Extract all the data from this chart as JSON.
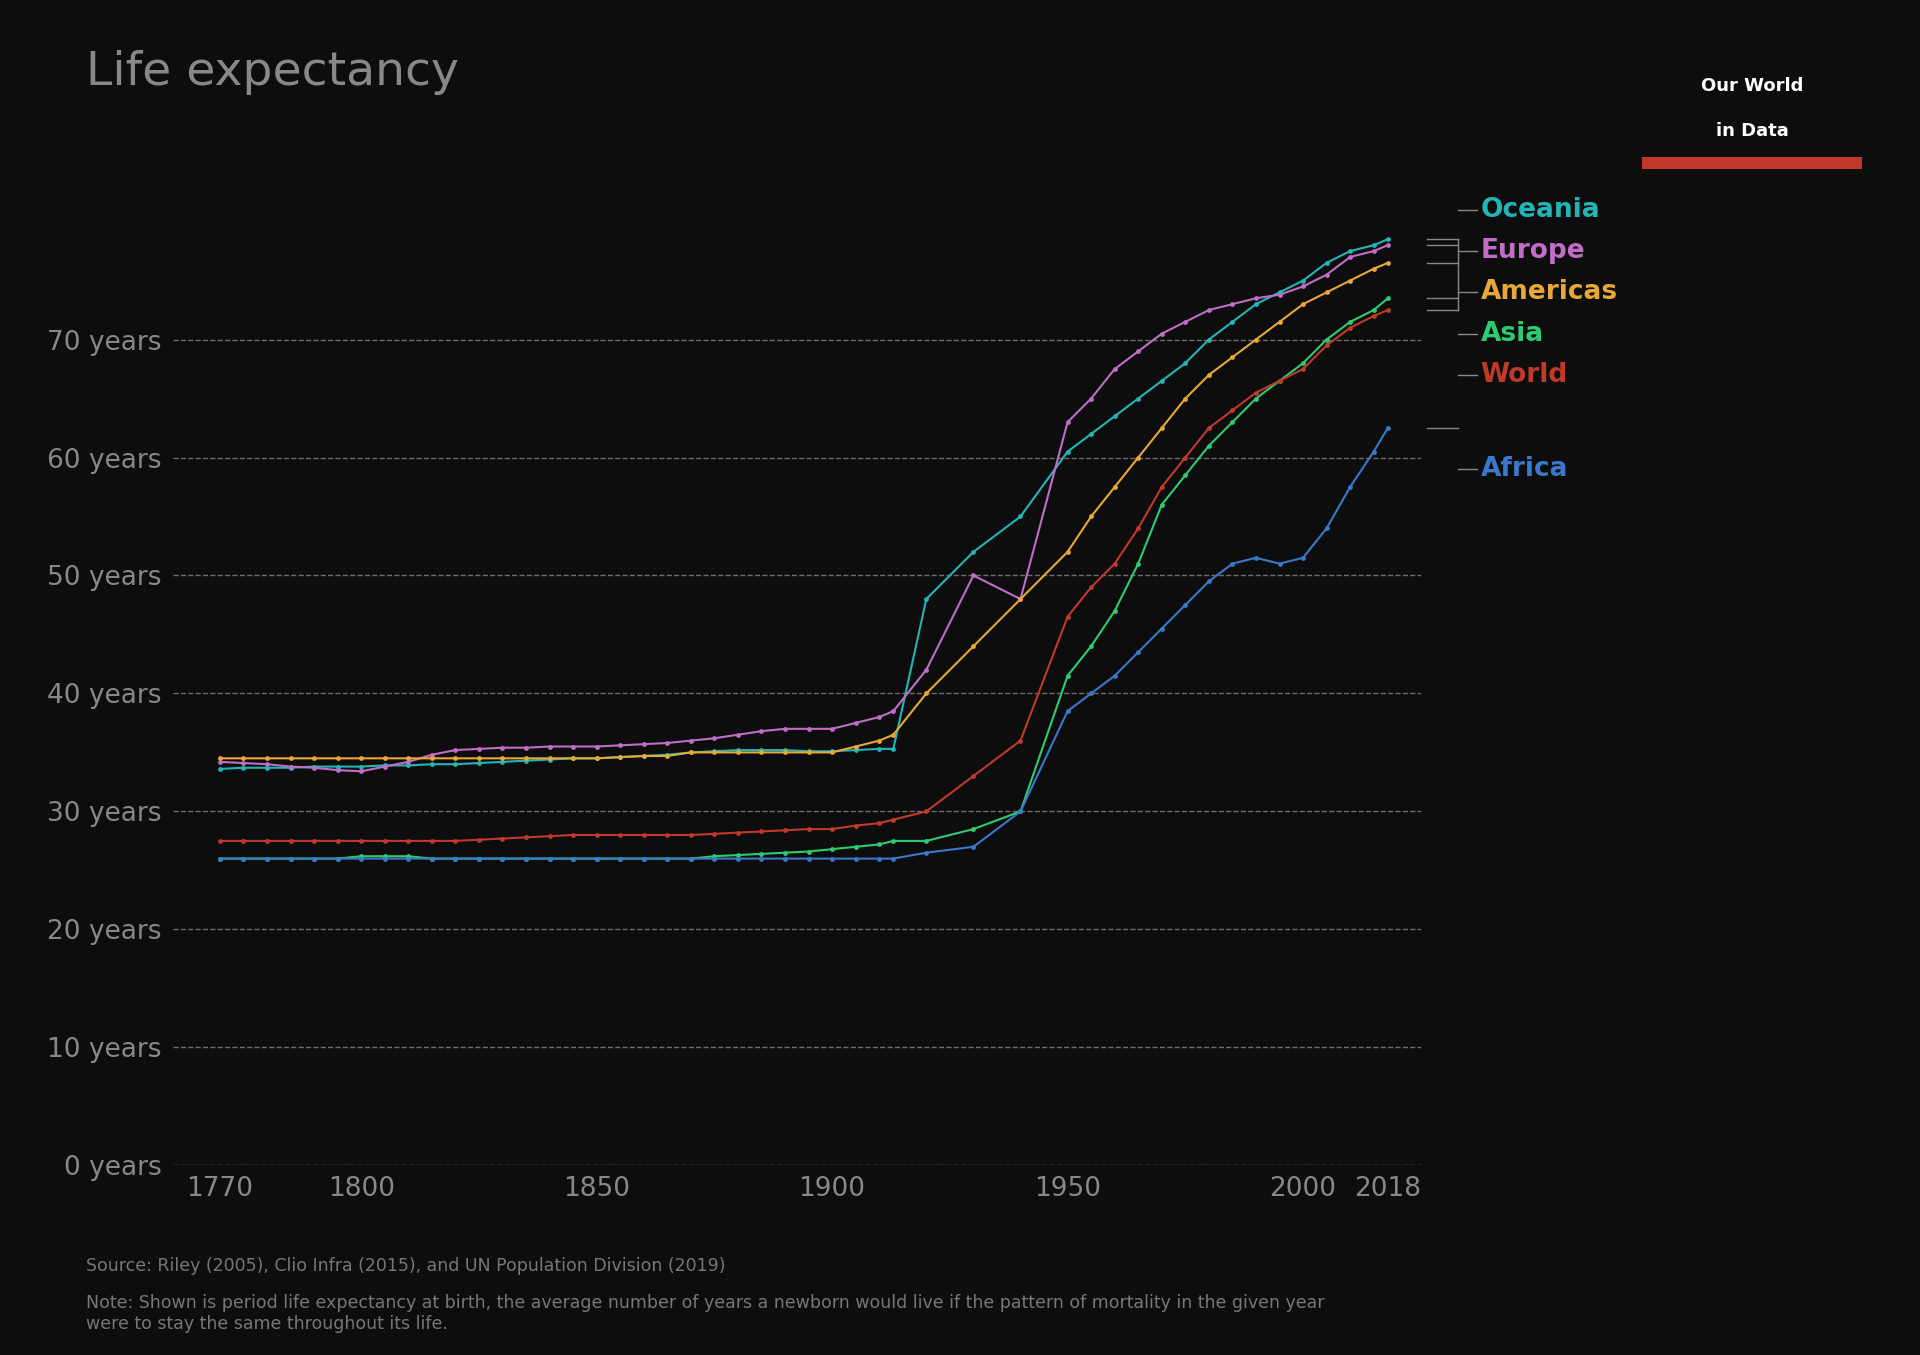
{
  "title": "Life expectancy",
  "background_color": "#0d0d0d",
  "text_color": "#888888",
  "title_color": "#888888",
  "grid_color": "#555555",
  "xlim": [
    1760,
    2025
  ],
  "ylim": [
    0,
    85
  ],
  "yticks": [
    0,
    10,
    20,
    30,
    40,
    50,
    60,
    70
  ],
  "ytick_labels": [
    "0 years",
    "10 years",
    "20 years",
    "30 years",
    "40 years",
    "50 years",
    "60 years",
    "70 years"
  ],
  "xticks": [
    1770,
    1800,
    1850,
    1900,
    1950,
    2000,
    2018
  ],
  "series": {
    "Oceania": {
      "color": "#23b5b5",
      "data": [
        [
          1770,
          33.6
        ],
        [
          1775,
          33.7
        ],
        [
          1780,
          33.7
        ],
        [
          1785,
          33.7
        ],
        [
          1790,
          33.8
        ],
        [
          1795,
          33.8
        ],
        [
          1800,
          33.8
        ],
        [
          1805,
          33.9
        ],
        [
          1810,
          33.9
        ],
        [
          1815,
          34.0
        ],
        [
          1820,
          34.0
        ],
        [
          1825,
          34.1
        ],
        [
          1830,
          34.2
        ],
        [
          1835,
          34.3
        ],
        [
          1840,
          34.4
        ],
        [
          1845,
          34.5
        ],
        [
          1850,
          34.5
        ],
        [
          1855,
          34.6
        ],
        [
          1860,
          34.7
        ],
        [
          1865,
          34.8
        ],
        [
          1870,
          35.0
        ],
        [
          1875,
          35.1
        ],
        [
          1880,
          35.2
        ],
        [
          1885,
          35.2
        ],
        [
          1890,
          35.2
        ],
        [
          1895,
          35.1
        ],
        [
          1900,
          35.1
        ],
        [
          1905,
          35.2
        ],
        [
          1910,
          35.3
        ],
        [
          1913,
          35.3
        ],
        [
          1920,
          48.0
        ],
        [
          1930,
          52.0
        ],
        [
          1940,
          55.0
        ],
        [
          1950,
          60.5
        ],
        [
          1955,
          62.0
        ],
        [
          1960,
          63.5
        ],
        [
          1965,
          65.0
        ],
        [
          1970,
          66.5
        ],
        [
          1975,
          68.0
        ],
        [
          1980,
          70.0
        ],
        [
          1985,
          71.5
        ],
        [
          1990,
          73.0
        ],
        [
          1995,
          74.0
        ],
        [
          2000,
          75.0
        ],
        [
          2005,
          76.5
        ],
        [
          2010,
          77.5
        ],
        [
          2015,
          78.0
        ],
        [
          2018,
          78.5
        ]
      ]
    },
    "Europe": {
      "color": "#c06dc8",
      "data": [
        [
          1770,
          34.2
        ],
        [
          1775,
          34.1
        ],
        [
          1780,
          34.0
        ],
        [
          1785,
          33.8
        ],
        [
          1790,
          33.7
        ],
        [
          1795,
          33.5
        ],
        [
          1800,
          33.4
        ],
        [
          1805,
          33.8
        ],
        [
          1810,
          34.2
        ],
        [
          1815,
          34.8
        ],
        [
          1820,
          35.2
        ],
        [
          1825,
          35.3
        ],
        [
          1830,
          35.4
        ],
        [
          1835,
          35.4
        ],
        [
          1840,
          35.5
        ],
        [
          1845,
          35.5
        ],
        [
          1850,
          35.5
        ],
        [
          1855,
          35.6
        ],
        [
          1860,
          35.7
        ],
        [
          1865,
          35.8
        ],
        [
          1870,
          36.0
        ],
        [
          1875,
          36.2
        ],
        [
          1880,
          36.5
        ],
        [
          1885,
          36.8
        ],
        [
          1890,
          37.0
        ],
        [
          1895,
          37.0
        ],
        [
          1900,
          37.0
        ],
        [
          1905,
          37.5
        ],
        [
          1910,
          38.0
        ],
        [
          1913,
          38.5
        ],
        [
          1920,
          42.0
        ],
        [
          1930,
          50.0
        ],
        [
          1940,
          48.0
        ],
        [
          1950,
          63.0
        ],
        [
          1955,
          65.0
        ],
        [
          1960,
          67.5
        ],
        [
          1965,
          69.0
        ],
        [
          1970,
          70.5
        ],
        [
          1975,
          71.5
        ],
        [
          1980,
          72.5
        ],
        [
          1985,
          73.0
        ],
        [
          1990,
          73.5
        ],
        [
          1995,
          73.8
        ],
        [
          2000,
          74.5
        ],
        [
          2005,
          75.5
        ],
        [
          2010,
          77.0
        ],
        [
          2015,
          77.5
        ],
        [
          2018,
          78.0
        ]
      ]
    },
    "Americas": {
      "color": "#e8a838",
      "data": [
        [
          1770,
          34.5
        ],
        [
          1775,
          34.5
        ],
        [
          1780,
          34.5
        ],
        [
          1785,
          34.5
        ],
        [
          1790,
          34.5
        ],
        [
          1795,
          34.5
        ],
        [
          1800,
          34.5
        ],
        [
          1805,
          34.5
        ],
        [
          1810,
          34.5
        ],
        [
          1815,
          34.5
        ],
        [
          1820,
          34.5
        ],
        [
          1825,
          34.5
        ],
        [
          1830,
          34.5
        ],
        [
          1835,
          34.5
        ],
        [
          1840,
          34.5
        ],
        [
          1845,
          34.5
        ],
        [
          1850,
          34.5
        ],
        [
          1855,
          34.6
        ],
        [
          1860,
          34.7
        ],
        [
          1865,
          34.7
        ],
        [
          1870,
          35.0
        ],
        [
          1875,
          35.0
        ],
        [
          1880,
          35.0
        ],
        [
          1885,
          35.0
        ],
        [
          1890,
          35.0
        ],
        [
          1895,
          35.0
        ],
        [
          1900,
          35.0
        ],
        [
          1905,
          35.5
        ],
        [
          1910,
          36.0
        ],
        [
          1913,
          36.5
        ],
        [
          1920,
          40.0
        ],
        [
          1930,
          44.0
        ],
        [
          1940,
          48.0
        ],
        [
          1950,
          52.0
        ],
        [
          1955,
          55.0
        ],
        [
          1960,
          57.5
        ],
        [
          1965,
          60.0
        ],
        [
          1970,
          62.5
        ],
        [
          1975,
          65.0
        ],
        [
          1980,
          67.0
        ],
        [
          1985,
          68.5
        ],
        [
          1990,
          70.0
        ],
        [
          1995,
          71.5
        ],
        [
          2000,
          73.0
        ],
        [
          2005,
          74.0
        ],
        [
          2010,
          75.0
        ],
        [
          2015,
          76.0
        ],
        [
          2018,
          76.5
        ]
      ]
    },
    "Asia": {
      "color": "#2ecc71",
      "data": [
        [
          1770,
          26.0
        ],
        [
          1775,
          26.0
        ],
        [
          1780,
          26.0
        ],
        [
          1785,
          26.0
        ],
        [
          1790,
          26.0
        ],
        [
          1795,
          26.0
        ],
        [
          1800,
          26.2
        ],
        [
          1805,
          26.2
        ],
        [
          1810,
          26.2
        ],
        [
          1815,
          26.0
        ],
        [
          1820,
          26.0
        ],
        [
          1825,
          26.0
        ],
        [
          1830,
          26.0
        ],
        [
          1835,
          26.0
        ],
        [
          1840,
          26.0
        ],
        [
          1845,
          26.0
        ],
        [
          1850,
          26.0
        ],
        [
          1855,
          26.0
        ],
        [
          1860,
          26.0
        ],
        [
          1865,
          26.0
        ],
        [
          1870,
          26.0
        ],
        [
          1875,
          26.2
        ],
        [
          1880,
          26.3
        ],
        [
          1885,
          26.4
        ],
        [
          1890,
          26.5
        ],
        [
          1895,
          26.6
        ],
        [
          1900,
          26.8
        ],
        [
          1905,
          27.0
        ],
        [
          1910,
          27.2
        ],
        [
          1913,
          27.5
        ],
        [
          1920,
          27.5
        ],
        [
          1930,
          28.5
        ],
        [
          1940,
          30.0
        ],
        [
          1950,
          41.5
        ],
        [
          1955,
          44.0
        ],
        [
          1960,
          47.0
        ],
        [
          1965,
          51.0
        ],
        [
          1970,
          56.0
        ],
        [
          1975,
          58.5
        ],
        [
          1980,
          61.0
        ],
        [
          1985,
          63.0
        ],
        [
          1990,
          65.0
        ],
        [
          1995,
          66.5
        ],
        [
          2000,
          68.0
        ],
        [
          2005,
          70.0
        ],
        [
          2010,
          71.5
        ],
        [
          2015,
          72.5
        ],
        [
          2018,
          73.5
        ]
      ]
    },
    "World": {
      "color": "#c0392b",
      "data": [
        [
          1770,
          27.5
        ],
        [
          1775,
          27.5
        ],
        [
          1780,
          27.5
        ],
        [
          1785,
          27.5
        ],
        [
          1790,
          27.5
        ],
        [
          1795,
          27.5
        ],
        [
          1800,
          27.5
        ],
        [
          1805,
          27.5
        ],
        [
          1810,
          27.5
        ],
        [
          1815,
          27.5
        ],
        [
          1820,
          27.5
        ],
        [
          1825,
          27.6
        ],
        [
          1830,
          27.7
        ],
        [
          1835,
          27.8
        ],
        [
          1840,
          27.9
        ],
        [
          1845,
          28.0
        ],
        [
          1850,
          28.0
        ],
        [
          1855,
          28.0
        ],
        [
          1860,
          28.0
        ],
        [
          1865,
          28.0
        ],
        [
          1870,
          28.0
        ],
        [
          1875,
          28.1
        ],
        [
          1880,
          28.2
        ],
        [
          1885,
          28.3
        ],
        [
          1890,
          28.4
        ],
        [
          1895,
          28.5
        ],
        [
          1900,
          28.5
        ],
        [
          1905,
          28.8
        ],
        [
          1910,
          29.0
        ],
        [
          1913,
          29.3
        ],
        [
          1920,
          30.0
        ],
        [
          1930,
          33.0
        ],
        [
          1940,
          36.0
        ],
        [
          1950,
          46.5
        ],
        [
          1955,
          49.0
        ],
        [
          1960,
          51.0
        ],
        [
          1965,
          54.0
        ],
        [
          1970,
          57.5
        ],
        [
          1975,
          60.0
        ],
        [
          1980,
          62.5
        ],
        [
          1985,
          64.0
        ],
        [
          1990,
          65.5
        ],
        [
          1995,
          66.5
        ],
        [
          2000,
          67.5
        ],
        [
          2005,
          69.5
        ],
        [
          2010,
          71.0
        ],
        [
          2015,
          72.0
        ],
        [
          2018,
          72.5
        ]
      ]
    },
    "Africa": {
      "color": "#3a78c9",
      "data": [
        [
          1770,
          26.0
        ],
        [
          1775,
          26.0
        ],
        [
          1780,
          26.0
        ],
        [
          1785,
          26.0
        ],
        [
          1790,
          26.0
        ],
        [
          1795,
          26.0
        ],
        [
          1800,
          26.0
        ],
        [
          1805,
          26.0
        ],
        [
          1810,
          26.0
        ],
        [
          1815,
          26.0
        ],
        [
          1820,
          26.0
        ],
        [
          1825,
          26.0
        ],
        [
          1830,
          26.0
        ],
        [
          1835,
          26.0
        ],
        [
          1840,
          26.0
        ],
        [
          1845,
          26.0
        ],
        [
          1850,
          26.0
        ],
        [
          1855,
          26.0
        ],
        [
          1860,
          26.0
        ],
        [
          1865,
          26.0
        ],
        [
          1870,
          26.0
        ],
        [
          1875,
          26.0
        ],
        [
          1880,
          26.0
        ],
        [
          1885,
          26.0
        ],
        [
          1890,
          26.0
        ],
        [
          1895,
          26.0
        ],
        [
          1900,
          26.0
        ],
        [
          1905,
          26.0
        ],
        [
          1910,
          26.0
        ],
        [
          1913,
          26.0
        ],
        [
          1920,
          26.5
        ],
        [
          1930,
          27.0
        ],
        [
          1940,
          30.0
        ],
        [
          1950,
          38.5
        ],
        [
          1955,
          40.0
        ],
        [
          1960,
          41.5
        ],
        [
          1965,
          43.5
        ],
        [
          1970,
          45.5
        ],
        [
          1975,
          47.5
        ],
        [
          1980,
          49.5
        ],
        [
          1985,
          51.0
        ],
        [
          1990,
          51.5
        ],
        [
          1995,
          51.0
        ],
        [
          2000,
          51.5
        ],
        [
          2005,
          54.0
        ],
        [
          2010,
          57.5
        ],
        [
          2015,
          60.5
        ],
        [
          2018,
          62.5
        ]
      ]
    }
  },
  "legend_order": [
    "Oceania",
    "Europe",
    "Americas",
    "Asia",
    "World",
    "Africa"
  ],
  "legend_colors": {
    "Oceania": "#23b5b5",
    "Europe": "#c06dc8",
    "Americas": "#e8a838",
    "Asia": "#2ecc71",
    "World": "#c0392b",
    "Africa": "#3a78c9"
  },
  "end_values": {
    "Oceania": 78.5,
    "Europe": 78.0,
    "Americas": 76.5,
    "Asia": 73.5,
    "World": 72.5,
    "Africa": 62.5
  },
  "label_y_positions": {
    "Oceania": 81.0,
    "Europe": 77.5,
    "Americas": 74.0,
    "Asia": 70.5,
    "World": 67.0,
    "Africa": 59.0
  },
  "source_text": "Source: Riley (2005), Clio Infra (2015), and UN Population Division (2019)",
  "note_text": "Note: Shown is period life expectancy at birth, the average number of years a newborn would live if the pattern of mortality in the given year\nwere to stay the same throughout its life."
}
